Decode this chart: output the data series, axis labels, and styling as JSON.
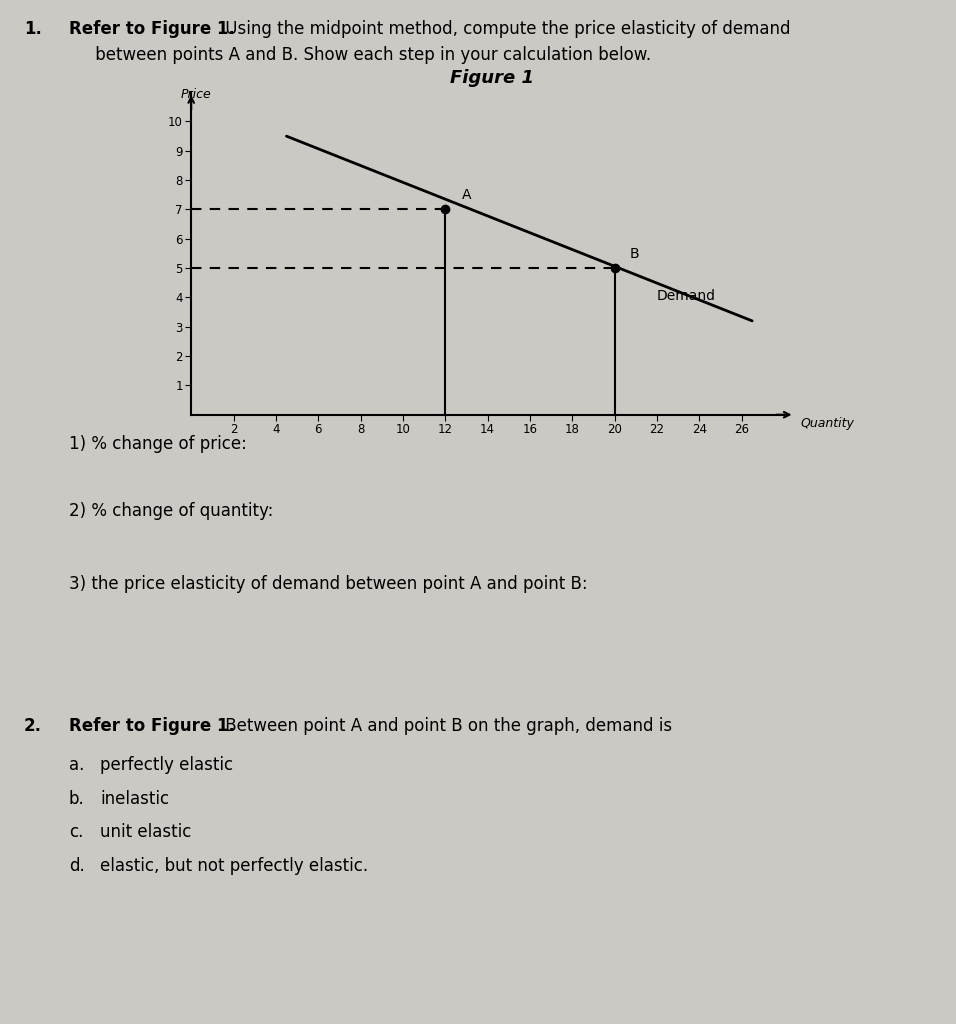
{
  "bg_color": "#ccc9c5",
  "figure_title": "Figure 1",
  "ylabel": "Price",
  "xlabel": "Quantity",
  "x_ticks": [
    2,
    4,
    6,
    8,
    10,
    12,
    14,
    16,
    18,
    20,
    22,
    24,
    26
  ],
  "y_ticks": [
    1,
    2,
    3,
    4,
    5,
    6,
    7,
    8,
    9,
    10
  ],
  "xlim": [
    0,
    28
  ],
  "ylim": [
    0,
    11
  ],
  "point_A": [
    12,
    7
  ],
  "point_B": [
    20,
    5
  ],
  "demand_line_x": [
    4.5,
    26.5
  ],
  "demand_line_y": [
    9.5,
    3.2
  ],
  "demand_label": "Demand",
  "text_1": "1) % change of price:",
  "text_2": "2) % change of quantity:",
  "text_3": "3) the price elasticity of demand between point A and point B:",
  "q1_num": "1.",
  "q1_bold": "Refer to Figure 1.",
  "q1_rest": " Using the midpoint method, compute the price elasticity of demand\n     between points A and B. Show each step in your calculation below.",
  "q2_num": "2.",
  "q2_bold": "Refer to Figure 1.",
  "q2_rest": " Between point A and point B on the graph, demand is",
  "ans_a": "perfectly elastic",
  "ans_b": "inelastic",
  "ans_c": "unit elastic",
  "ans_d": "elastic, but not perfectly elastic."
}
